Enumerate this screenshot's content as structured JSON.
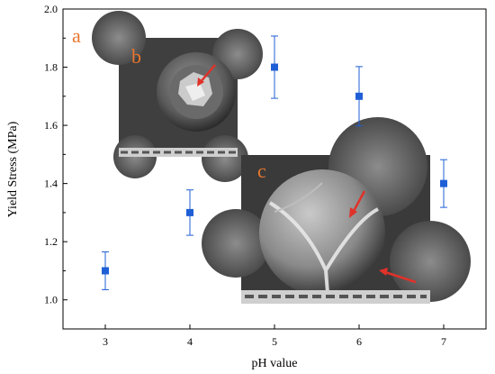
{
  "chart_data": {
    "type": "scatter",
    "title": "",
    "xlabel": "pH value",
    "ylabel": "Yield Stress (MPa)",
    "xlim": [
      2.5,
      7.5
    ],
    "ylim": [
      0.9,
      2.0
    ],
    "xticks": [
      "3",
      "4",
      "5",
      "6",
      "7"
    ],
    "yticks": [
      "1.0",
      "1.2",
      "1.4",
      "1.6",
      "1.8",
      "2.0"
    ],
    "grid": false,
    "series": [
      {
        "x": [
          3,
          4,
          5,
          6,
          7
        ],
        "y": [
          1.1,
          1.3,
          1.8,
          1.7,
          1.4
        ],
        "error": [
          0.065,
          0.078,
          0.107,
          0.102,
          0.082
        ]
      }
    ],
    "marker_color": "#1f5fd6"
  },
  "panels": {
    "a_label": "a",
    "b_label": "b",
    "c_label": "c"
  },
  "colors": {
    "panel_label": "#e8772e",
    "arrow": "#e0322a"
  }
}
